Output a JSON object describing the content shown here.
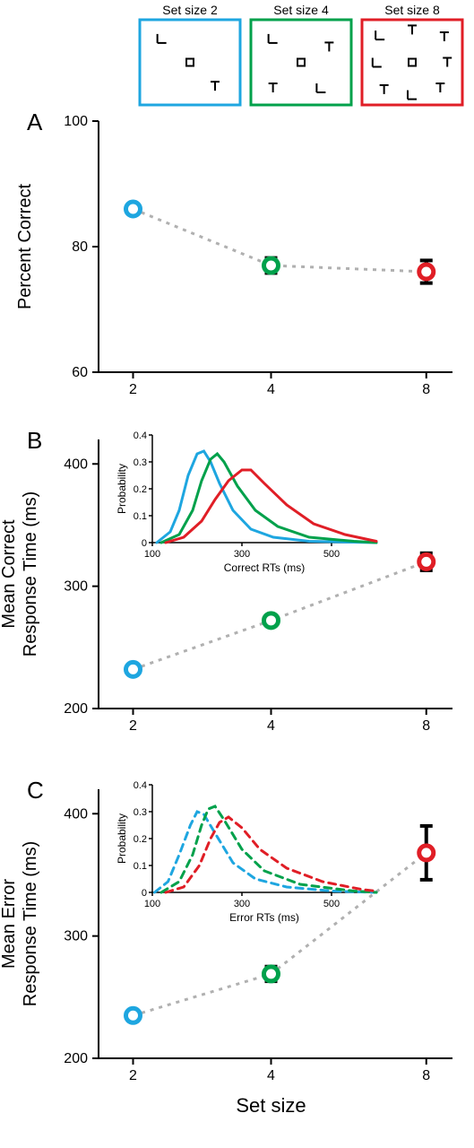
{
  "colors": {
    "blue": "#1ea6e0",
    "green": "#00a14b",
    "red": "#e01e26",
    "gray_dotted": "#b0b0b0",
    "black": "#000000",
    "axis": "#000000",
    "bg": "#ffffff"
  },
  "common": {
    "x_label": "Set size",
    "x_ticks": [
      2,
      4,
      8
    ],
    "marker_radius": 8,
    "marker_stroke": 5,
    "dotted_stroke": 3,
    "dotted_dash": "4,6",
    "errorbar_stroke": 4
  },
  "set_size_boxes": {
    "labels": [
      "Set size 2",
      "Set size 4",
      "Set size 8"
    ],
    "label_fontsize": 14,
    "box_stroke": 3
  },
  "panelA": {
    "letter": "A",
    "letter_fontsize": 26,
    "y_label": "Percent Correct",
    "label_fontsize": 20,
    "tick_fontsize": 16,
    "ylim": [
      60,
      100
    ],
    "yticks": [
      60,
      80,
      100
    ],
    "data": [
      {
        "x": 2,
        "y": 86,
        "err": 0,
        "color_key": "blue"
      },
      {
        "x": 4,
        "y": 77,
        "err": 1.2,
        "color_key": "green"
      },
      {
        "x": 8,
        "y": 76,
        "err": 1.8,
        "color_key": "red"
      }
    ]
  },
  "panelB": {
    "letter": "B",
    "letter_fontsize": 26,
    "y_label_line1": "Mean Correct",
    "y_label_line2": "Response Time (ms)",
    "label_fontsize": 20,
    "tick_fontsize": 16,
    "ylim": [
      200,
      420
    ],
    "yticks": [
      200,
      300,
      400
    ],
    "data": [
      {
        "x": 2,
        "y": 232,
        "err": 0,
        "color_key": "blue"
      },
      {
        "x": 4,
        "y": 272,
        "err": 4,
        "color_key": "green"
      },
      {
        "x": 8,
        "y": 320,
        "err": 7,
        "color_key": "red"
      }
    ],
    "inset": {
      "x_label": "Correct RTs (ms)",
      "y_label": "Probability",
      "label_fontsize": 12,
      "tick_fontsize": 11,
      "xlim": [
        100,
        600
      ],
      "xticks": [
        100,
        300,
        500
      ],
      "ylim": [
        0,
        0.4
      ],
      "yticks": [
        0,
        0.1,
        0.2,
        0.3,
        0.4
      ],
      "line_stroke": 3,
      "dash": "none",
      "curves": [
        {
          "color_key": "blue",
          "pts": [
            [
              110,
              0.0
            ],
            [
              140,
              0.04
            ],
            [
              160,
              0.12
            ],
            [
              180,
              0.25
            ],
            [
              200,
              0.33
            ],
            [
              215,
              0.34
            ],
            [
              230,
              0.3
            ],
            [
              250,
              0.22
            ],
            [
              280,
              0.12
            ],
            [
              320,
              0.05
            ],
            [
              370,
              0.02
            ],
            [
              450,
              0.005
            ],
            [
              600,
              0.0
            ]
          ]
        },
        {
          "color_key": "green",
          "pts": [
            [
              120,
              0.0
            ],
            [
              160,
              0.03
            ],
            [
              190,
              0.12
            ],
            [
              210,
              0.23
            ],
            [
              230,
              0.31
            ],
            [
              245,
              0.33
            ],
            [
              260,
              0.3
            ],
            [
              290,
              0.21
            ],
            [
              330,
              0.12
            ],
            [
              380,
              0.06
            ],
            [
              450,
              0.02
            ],
            [
              550,
              0.005
            ],
            [
              600,
              0.0
            ]
          ]
        },
        {
          "color_key": "red",
          "pts": [
            [
              130,
              0.0
            ],
            [
              170,
              0.02
            ],
            [
              210,
              0.08
            ],
            [
              240,
              0.16
            ],
            [
              270,
              0.23
            ],
            [
              300,
              0.27
            ],
            [
              320,
              0.27
            ],
            [
              350,
              0.22
            ],
            [
              400,
              0.14
            ],
            [
              460,
              0.07
            ],
            [
              530,
              0.03
            ],
            [
              600,
              0.005
            ]
          ]
        }
      ]
    }
  },
  "panelC": {
    "letter": "C",
    "letter_fontsize": 26,
    "y_label_line1": "Mean Error",
    "y_label_line2": "Response Time (ms)",
    "label_fontsize": 20,
    "tick_fontsize": 16,
    "ylim": [
      200,
      420
    ],
    "yticks": [
      200,
      300,
      400
    ],
    "data": [
      {
        "x": 2,
        "y": 235,
        "err": 0,
        "color_key": "blue"
      },
      {
        "x": 4,
        "y": 269,
        "err": 6,
        "color_key": "green"
      },
      {
        "x": 8,
        "y": 368,
        "err": 22,
        "color_key": "red"
      }
    ],
    "inset": {
      "x_label": "Error RTs (ms)",
      "y_label": "Probability",
      "label_fontsize": 12,
      "tick_fontsize": 11,
      "xlim": [
        100,
        600
      ],
      "xticks": [
        100,
        300,
        500
      ],
      "ylim": [
        0,
        0.4
      ],
      "yticks": [
        0,
        0.1,
        0.2,
        0.3,
        0.4
      ],
      "line_stroke": 3,
      "dash": "8,6",
      "curves": [
        {
          "color_key": "blue",
          "pts": [
            [
              105,
              0.0
            ],
            [
              135,
              0.04
            ],
            [
              160,
              0.14
            ],
            [
              185,
              0.25
            ],
            [
              200,
              0.3
            ],
            [
              215,
              0.29
            ],
            [
              240,
              0.22
            ],
            [
              280,
              0.11
            ],
            [
              330,
              0.05
            ],
            [
              400,
              0.02
            ],
            [
              500,
              0.005
            ],
            [
              600,
              0.0
            ]
          ]
        },
        {
          "color_key": "green",
          "pts": [
            [
              120,
              0.0
            ],
            [
              160,
              0.04
            ],
            [
              190,
              0.14
            ],
            [
              210,
              0.25
            ],
            [
              225,
              0.31
            ],
            [
              240,
              0.32
            ],
            [
              260,
              0.27
            ],
            [
              300,
              0.16
            ],
            [
              350,
              0.08
            ],
            [
              430,
              0.03
            ],
            [
              550,
              0.005
            ],
            [
              600,
              0.0
            ]
          ]
        },
        {
          "color_key": "red",
          "pts": [
            [
              130,
              0.0
            ],
            [
              170,
              0.02
            ],
            [
              205,
              0.1
            ],
            [
              230,
              0.2
            ],
            [
              250,
              0.26
            ],
            [
              270,
              0.28
            ],
            [
              300,
              0.24
            ],
            [
              340,
              0.16
            ],
            [
              400,
              0.09
            ],
            [
              480,
              0.04
            ],
            [
              570,
              0.01
            ],
            [
              600,
              0.005
            ]
          ]
        }
      ]
    }
  }
}
